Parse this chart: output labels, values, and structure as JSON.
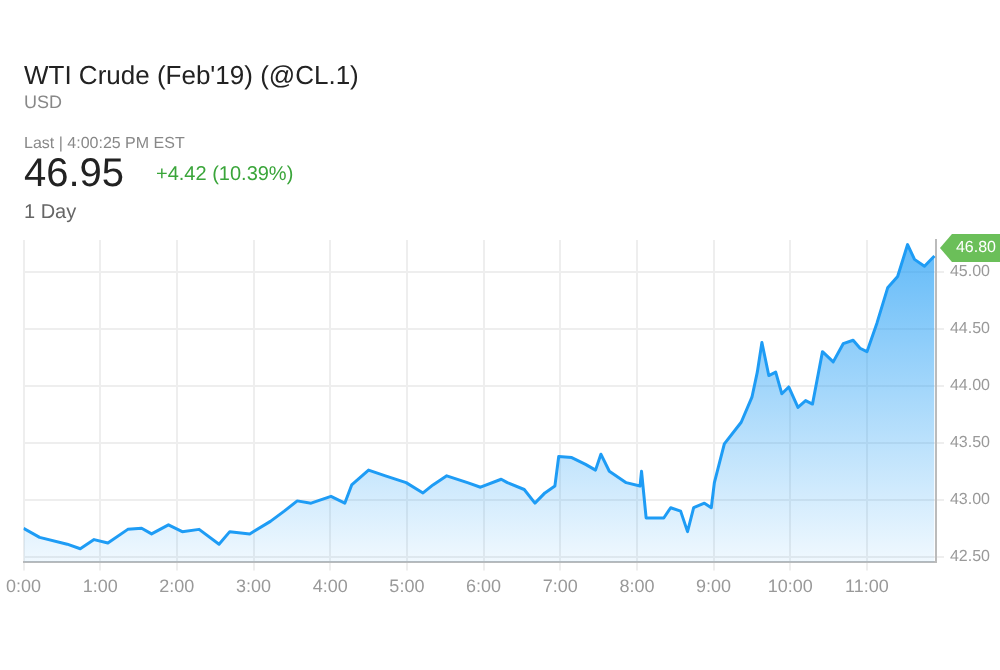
{
  "chart_data": {
    "type": "area",
    "title": "WTI Crude (Feb'19) (@CL.1)",
    "subtitle": "USD",
    "annotations": [
      "Last | 4:00:25 PM EST",
      "46.95",
      "+4.42 (10.39%)",
      "1 Day",
      "46.80"
    ],
    "series": [
      {
        "color": "#1e9cf5",
        "x": [
          0,
          0.21,
          0.57,
          0.74,
          0.92,
          1.1,
          1.36,
          1.54,
          1.67,
          1.89,
          2.07,
          2.29,
          2.55,
          2.69,
          2.95,
          3.22,
          3.4,
          3.57,
          3.75,
          4.01,
          4.19,
          4.28,
          4.5,
          4.72,
          4.99,
          5.21,
          5.34,
          5.52,
          5.79,
          5.96,
          6.23,
          6.31,
          6.53,
          6.67,
          6.8,
          6.93,
          6.98,
          7.15,
          7.33,
          7.46,
          7.53,
          7.64,
          7.86,
          8.04,
          8.06,
          8.12,
          8.35,
          8.44,
          8.57,
          8.66,
          8.74,
          8.88,
          8.97,
          9.01,
          9.14,
          9.36,
          9.5,
          9.57,
          9.63,
          9.72,
          9.81,
          9.89,
          9.98,
          10.1,
          10.2,
          10.29,
          10.42,
          10.56,
          10.69,
          10.82,
          10.91,
          11.0,
          11.13,
          11.27,
          11.4,
          11.53,
          11.62,
          11.75,
          11.88
        ],
        "values": [
          42.75,
          42.67,
          42.61,
          42.57,
          42.65,
          42.62,
          42.74,
          42.75,
          42.7,
          42.78,
          42.72,
          42.74,
          42.61,
          42.72,
          42.7,
          42.81,
          42.9,
          42.99,
          42.97,
          43.03,
          42.97,
          43.13,
          43.26,
          43.21,
          43.15,
          43.06,
          43.13,
          43.21,
          43.15,
          43.11,
          43.18,
          43.15,
          43.09,
          42.97,
          43.06,
          43.12,
          43.38,
          43.37,
          43.31,
          43.26,
          43.4,
          43.25,
          43.15,
          43.12,
          43.25,
          42.84,
          42.84,
          42.93,
          42.9,
          42.72,
          42.93,
          42.97,
          42.93,
          43.15,
          43.49,
          43.68,
          43.9,
          44.12,
          44.38,
          44.09,
          44.12,
          43.93,
          43.99,
          43.81,
          43.87,
          43.84,
          44.3,
          44.21,
          44.37,
          44.4,
          44.33,
          44.3,
          44.55,
          44.86,
          44.96,
          45.24,
          45.11,
          45.05,
          45.14
        ]
      }
    ],
    "xlim": [
      0,
      11.9
    ],
    "xticks": [
      {
        "value": 0,
        "label": "0:00"
      },
      {
        "value": 1,
        "label": "1:00"
      },
      {
        "value": 2,
        "label": "2:00"
      },
      {
        "value": 3,
        "label": "3:00"
      },
      {
        "value": 4,
        "label": "4:00"
      },
      {
        "value": 5,
        "label": "5:00"
      },
      {
        "value": 6,
        "label": "6:00"
      },
      {
        "value": 7,
        "label": "7:00"
      },
      {
        "value": 8,
        "label": "8:00"
      },
      {
        "value": 9,
        "label": "9:00"
      },
      {
        "value": 10,
        "label": "10:00"
      },
      {
        "value": 11,
        "label": "11:00"
      }
    ],
    "ylim": [
      42.45,
      45.28
    ],
    "yticks": [
      {
        "value": 42.5,
        "label": "42.50"
      },
      {
        "value": 43,
        "label": "43.00"
      },
      {
        "value": 43.5,
        "label": "43.50"
      },
      {
        "value": 44,
        "label": "44.00"
      },
      {
        "value": 44.5,
        "label": "44.50"
      },
      {
        "value": 45,
        "label": "45.00"
      }
    ],
    "grid": true,
    "legend": false,
    "marker": "none",
    "line_style": "solid"
  }
}
